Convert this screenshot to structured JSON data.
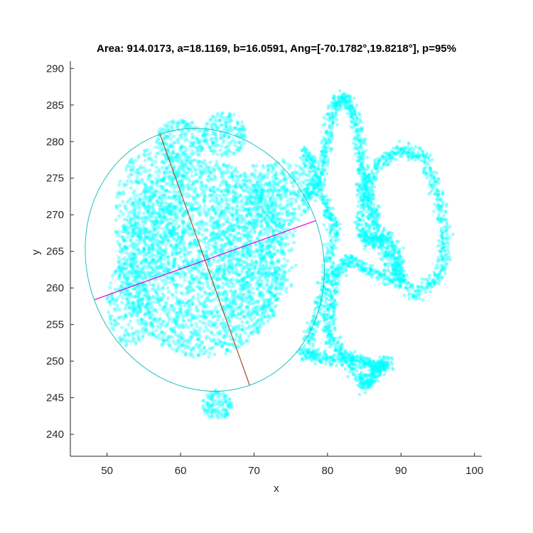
{
  "chart_data": {
    "type": "scatter",
    "title": "Area: 914.0173, a=18.1169, b=16.0591, Ang=[-70.1782°,19.8218°], p=95%",
    "xlabel": "x",
    "ylabel": "y",
    "xlim": [
      45,
      101
    ],
    "ylim": [
      237,
      291
    ],
    "xticks": [
      "50",
      "60",
      "70",
      "80",
      "90",
      "100"
    ],
    "yticks": [
      "240",
      "245",
      "250",
      "255",
      "260",
      "265",
      "270",
      "275",
      "280",
      "285",
      "290"
    ],
    "grid": false,
    "legend": "none",
    "colors": {
      "points": "#00ffff",
      "ellipse": "#1fbfbf",
      "major_axis": "#a0522d",
      "minor_axis": "#e000e0",
      "axes": "#262626"
    },
    "ellipse": {
      "center": [
        63.3,
        263.8
      ],
      "a": 18.1169,
      "b": 16.0591,
      "major_axis_endpoints": [
        [
          57.2,
          281.0
        ],
        [
          69.4,
          246.7
        ]
      ],
      "minor_axis_endpoints": [
        [
          48.3,
          258.4
        ],
        [
          78.4,
          269.2
        ]
      ],
      "area": 914.0173,
      "angles_deg": [
        -70.1782,
        19.8218
      ],
      "p": "95%"
    },
    "series": [
      {
        "type": "cloud",
        "regions": [
          {
            "cx": 63.0,
            "cy": 264.0,
            "rx": 11.5,
            "ry": 13.5,
            "n": 2600
          },
          {
            "cx": 56.0,
            "cy": 270.0,
            "rx": 5.0,
            "ry": 9.0,
            "n": 500
          },
          {
            "cx": 70.0,
            "cy": 266.0,
            "rx": 6.0,
            "ry": 11.0,
            "n": 500
          },
          {
            "cx": 60.0,
            "cy": 280.0,
            "rx": 3.5,
            "ry": 3.0,
            "n": 220
          },
          {
            "cx": 66.0,
            "cy": 281.0,
            "rx": 3.0,
            "ry": 3.0,
            "n": 180
          },
          {
            "cx": 65.0,
            "cy": 244.0,
            "rx": 2.0,
            "ry": 2.0,
            "n": 120
          },
          {
            "cx": 74.0,
            "cy": 273.0,
            "rx": 4.0,
            "ry": 4.5,
            "n": 260
          },
          {
            "cx": 53.0,
            "cy": 258.0,
            "rx": 3.0,
            "ry": 6.0,
            "n": 220
          }
        ]
      },
      {
        "type": "trail",
        "path": [
          [
            77.0,
            272.0
          ],
          [
            79.0,
            275.0
          ],
          [
            80.0,
            280.0
          ],
          [
            81.0,
            285.0
          ],
          [
            82.5,
            286.0
          ],
          [
            84.0,
            283.0
          ],
          [
            84.5,
            278.0
          ],
          [
            85.0,
            274.0
          ],
          [
            86.0,
            271.0
          ],
          [
            86.5,
            268.0
          ],
          [
            88.5,
            263.0
          ],
          [
            92.0,
            259.0
          ],
          [
            95.5,
            262.0
          ],
          [
            96.0,
            267.0
          ],
          [
            95.0,
            273.0
          ],
          [
            93.0,
            278.0
          ],
          [
            90.0,
            279.0
          ],
          [
            87.0,
            277.0
          ],
          [
            85.0,
            273.0
          ],
          [
            84.5,
            268.0
          ],
          [
            86.0,
            266.0
          ],
          [
            88.0,
            267.0
          ],
          [
            89.5,
            264.0
          ],
          [
            90.0,
            261.0
          ],
          [
            86.0,
            262.0
          ],
          [
            83.0,
            264.0
          ],
          [
            81.0,
            262.0
          ],
          [
            80.5,
            258.0
          ],
          [
            80.0,
            254.0
          ],
          [
            82.0,
            251.0
          ],
          [
            85.0,
            250.0
          ],
          [
            87.0,
            249.0
          ],
          [
            88.0,
            250.0
          ],
          [
            86.0,
            248.0
          ],
          [
            85.0,
            246.5
          ],
          [
            83.0,
            250.0
          ],
          [
            79.0,
            250.5
          ],
          [
            77.0,
            251.0
          ],
          [
            78.5,
            256.0
          ],
          [
            80.0,
            262.0
          ],
          [
            81.0,
            268.0
          ],
          [
            80.0,
            271.0
          ],
          [
            78.0,
            276.0
          ],
          [
            77.0,
            279.0
          ]
        ]
      }
    ]
  }
}
